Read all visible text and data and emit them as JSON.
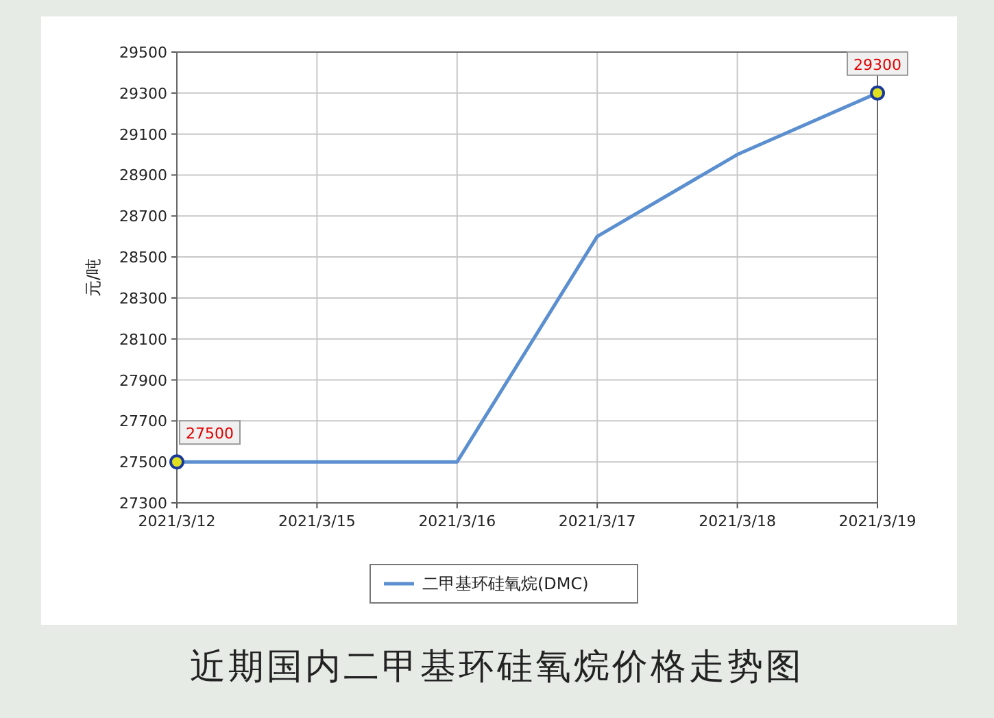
{
  "chart_data": {
    "type": "line",
    "title": "近期国内二甲基环硅氧烷价格走势图",
    "ylabel": "元/吨",
    "categories": [
      "2021/3/12",
      "2021/3/15",
      "2021/3/16",
      "2021/3/17",
      "2021/3/18",
      "2021/3/19"
    ],
    "series": [
      {
        "name": "二甲基环硅氧烷(DMC)",
        "color": "#5b8fd0",
        "values": [
          27500,
          27500,
          27500,
          28600,
          29000,
          29300
        ],
        "value_labels": [
          "27500",
          null,
          null,
          null,
          null,
          "29300"
        ]
      }
    ],
    "ylim": [
      27300,
      29500
    ],
    "yticks": [
      27300,
      27500,
      27700,
      27900,
      28100,
      28300,
      28500,
      28700,
      28900,
      29100,
      29300,
      29500
    ],
    "grid": true,
    "legend": "bottom",
    "line_style": "solid"
  }
}
